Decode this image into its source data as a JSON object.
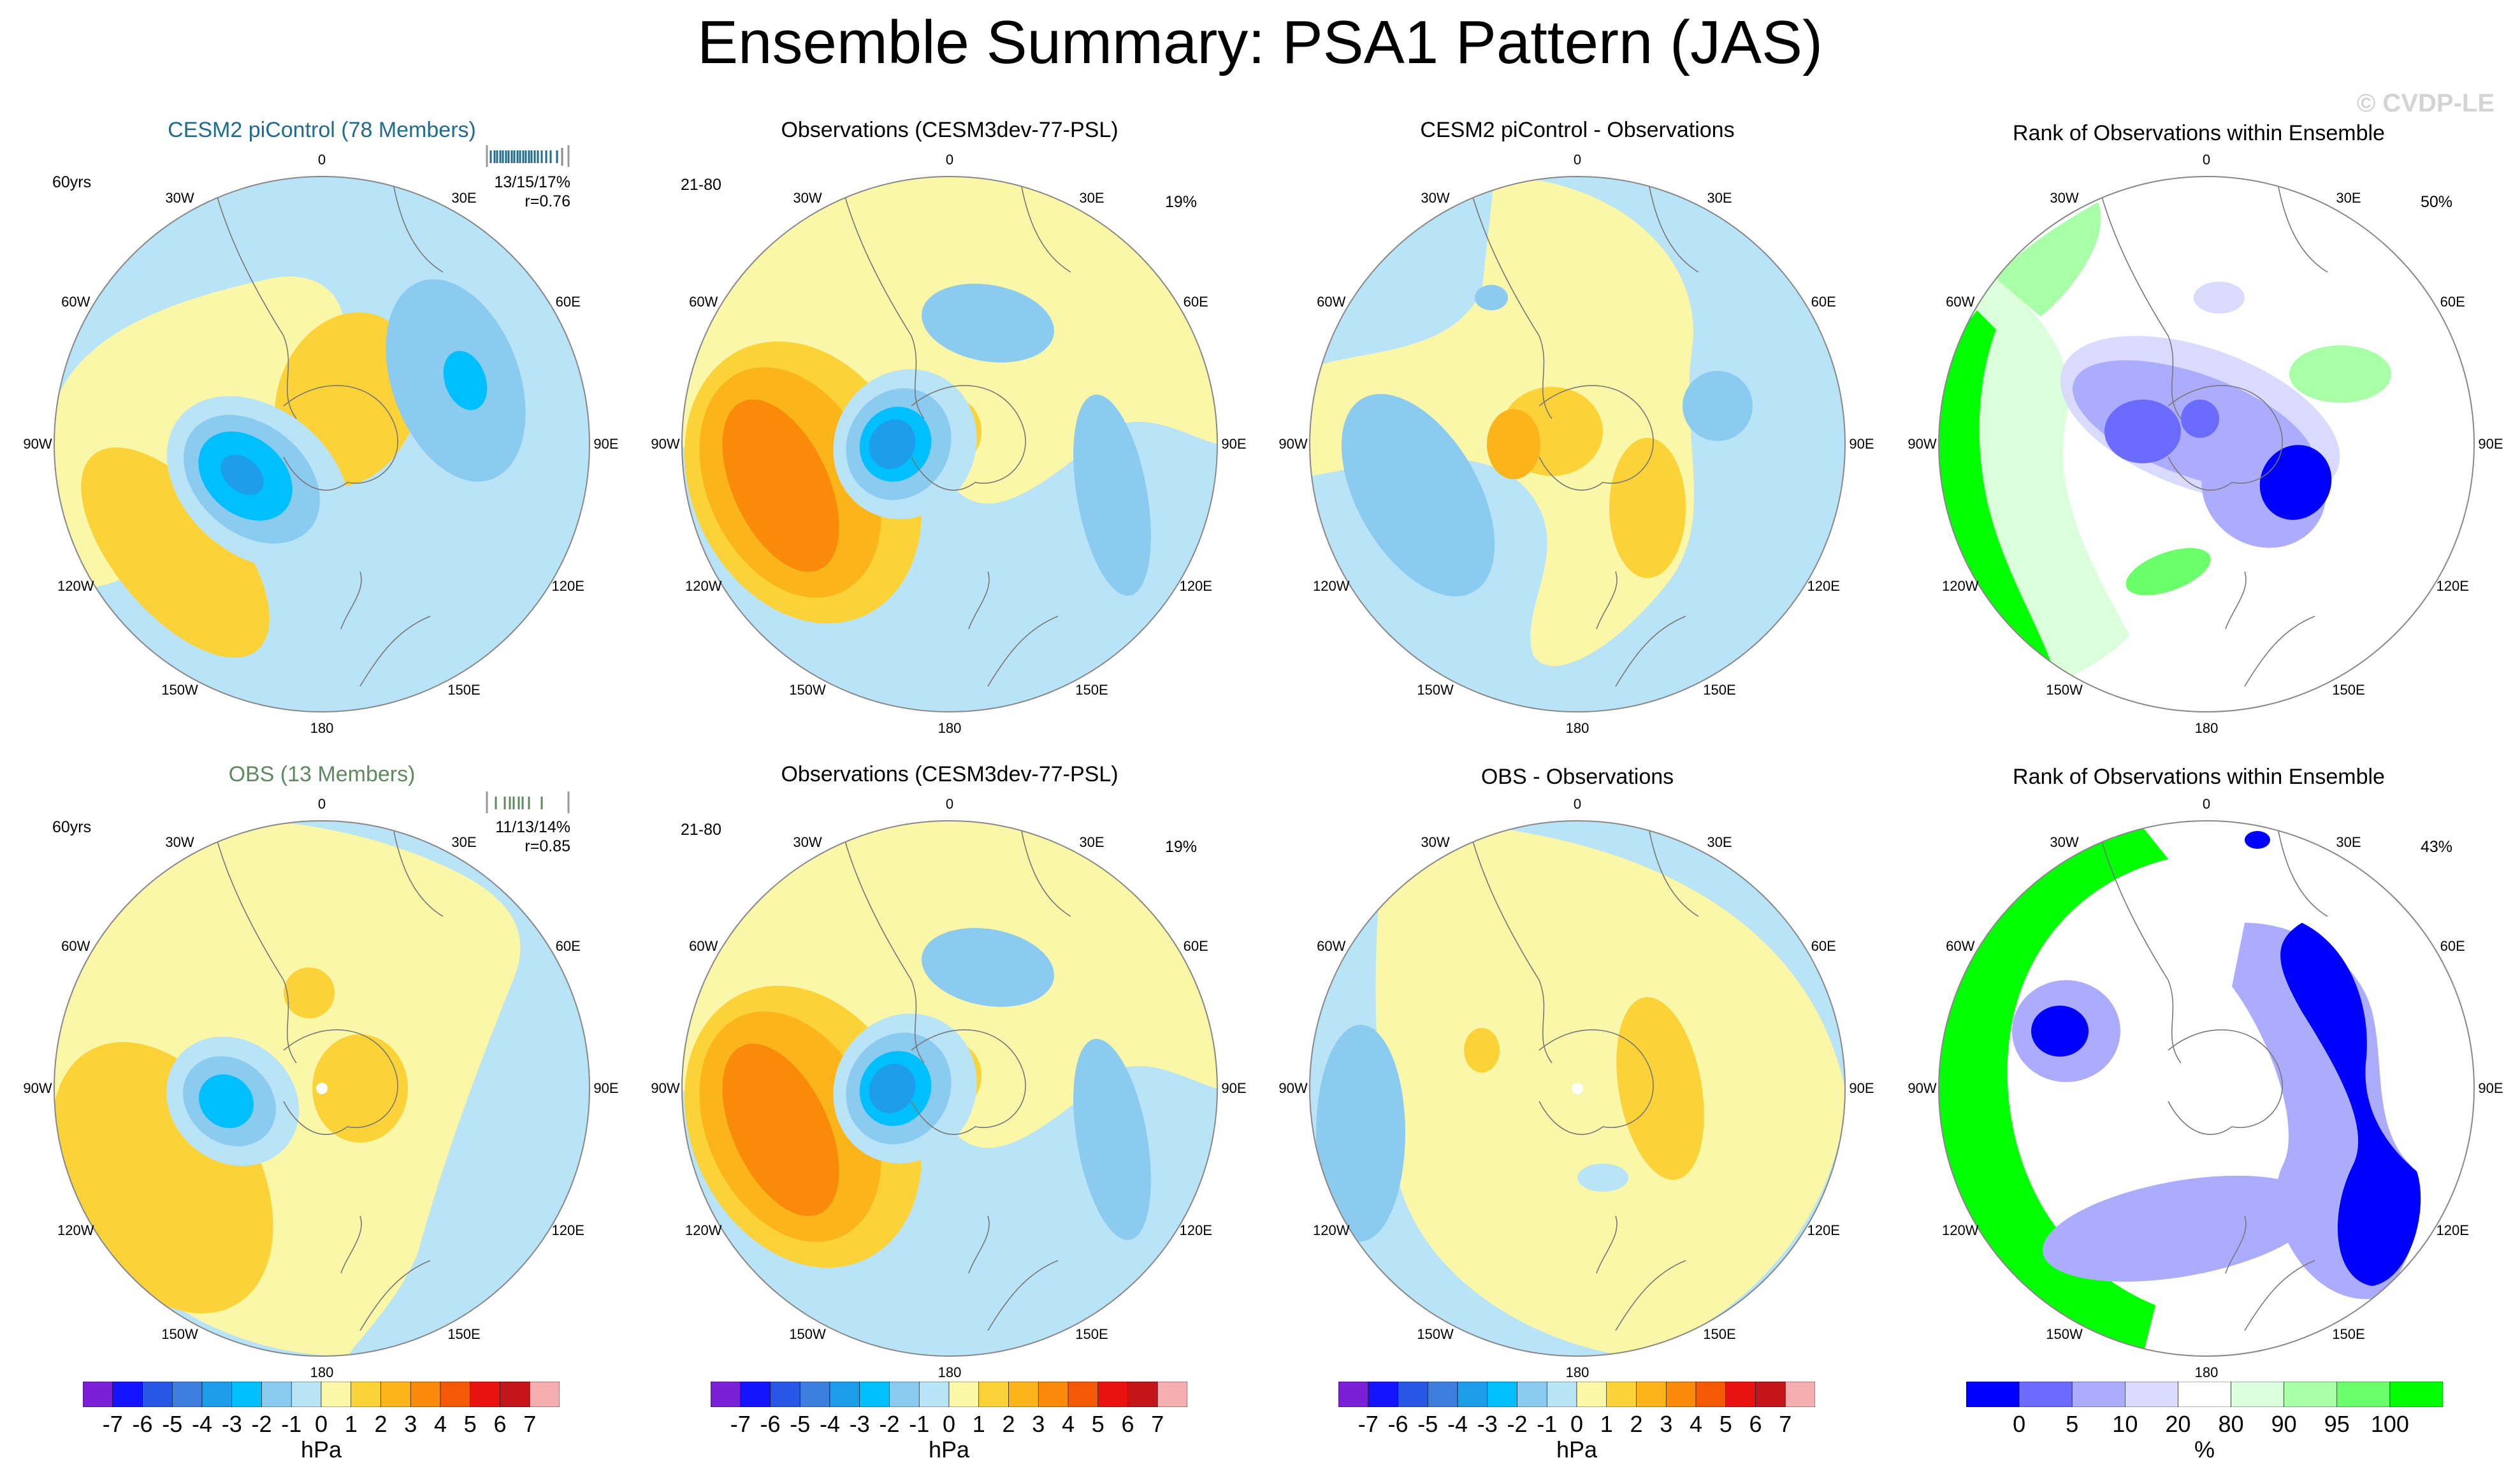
{
  "title": "Ensemble Summary: PSA1 Pattern (JAS)",
  "watermark": "© CVDP-LE",
  "colors": {
    "pal_hpa": [
      "#7a1fd6",
      "#1414ff",
      "#2857e6",
      "#3c7ddd",
      "#1e9dea",
      "#00bfff",
      "#8ccbf0",
      "#b9e3f6",
      "#fbf7a8",
      "#fbd338",
      "#fbb41a",
      "#fa8a0a",
      "#f45a05",
      "#e8130f",
      "#c3151a",
      "#f7aeb0"
    ],
    "pal_rank": [
      "#0000ff",
      "#6b6bff",
      "#acacff",
      "#dadaff",
      "#ffffff",
      "#dbffdb",
      "#a8ffa8",
      "#6cff6c",
      "#00ff00"
    ],
    "model_title": "#1f6c8c",
    "obs_title": "#5f8a5f"
  },
  "lon_labels": [
    "0",
    "30E",
    "60E",
    "90E",
    "120E",
    "150E",
    "180",
    "150W",
    "120W",
    "90W",
    "60W",
    "30W"
  ],
  "panels": {
    "r1c1": {
      "title": "CESM2 piControl (78 Members)",
      "left": "60yrs",
      "right1": "13/15/17%",
      "right2": "r=0.76"
    },
    "r1c2": {
      "title": "Observations (CESM3dev-77-PSL)",
      "left": "21-80",
      "right1": "19%"
    },
    "r1c3": {
      "title": "CESM2 piControl - Observations"
    },
    "r1c4": {
      "title": "Rank of Observations within Ensemble",
      "right1": "50%"
    },
    "r2c1": {
      "title": "OBS (13 Members)",
      "left": "60yrs",
      "right1": "11/13/14%",
      "right2": "r=0.85"
    },
    "r2c2": {
      "title": "Observations (CESM3dev-77-PSL)",
      "left": "21-80",
      "right1": "19%"
    },
    "r2c3": {
      "title": "OBS - Observations"
    },
    "r2c4": {
      "title": "Rank of Observations within Ensemble",
      "right1": "43%"
    }
  },
  "chart_data": [
    {
      "type": "heatmap",
      "panel": "r1c1",
      "title": "CESM2 piControl (78 Members)",
      "projection": "south polar stereographic",
      "variable": "PSL anomaly",
      "units": "hPa",
      "annotations": [
        "60yrs",
        "13/15/17%",
        "r=0.76"
      ],
      "features": [
        {
          "region": "90W-120W",
          "sign": "negative",
          "min": -4
        },
        {
          "region": "150W-120W",
          "sign": "positive",
          "max": 2
        },
        {
          "region": "60E-90E",
          "sign": "negative",
          "min": -2
        },
        {
          "region": "Antarctic Peninsula",
          "sign": "positive",
          "max": 2
        }
      ]
    },
    {
      "type": "heatmap",
      "panel": "r1c2",
      "title": "Observations (CESM3dev-77-PSL)",
      "units": "hPa",
      "annotations": [
        "21-80",
        "19%"
      ],
      "features": [
        {
          "region": "90W-120W",
          "sign": "negative",
          "min": -4
        },
        {
          "region": "120W-150W",
          "sign": "positive",
          "max": 4
        },
        {
          "region": "60E",
          "sign": "negative",
          "min": -2
        },
        {
          "region": "90E-150E",
          "sign": "negative",
          "min": -2
        }
      ]
    },
    {
      "type": "heatmap",
      "panel": "r1c3",
      "title": "CESM2 piControl - Observations",
      "units": "hPa",
      "features": [
        {
          "region": "90W-150W",
          "sign": "negative",
          "min": -2
        },
        {
          "region": "90W",
          "sign": "positive",
          "max": 3
        },
        {
          "region": "90E-120E",
          "sign": "positive",
          "max": 2
        },
        {
          "region": "60E",
          "sign": "negative",
          "min": -2
        }
      ]
    },
    {
      "type": "heatmap",
      "panel": "r1c4",
      "title": "Rank of Observations within Ensemble",
      "units": "%",
      "annotations": [
        "50%"
      ],
      "features": [
        {
          "region": "60W-150W rim",
          "rank": 100
        },
        {
          "region": "90W",
          "rank": 0
        },
        {
          "region": "90E-120E",
          "rank": 0
        },
        {
          "region": "30W-60W",
          "rank": 90
        }
      ]
    },
    {
      "type": "heatmap",
      "panel": "r2c1",
      "title": "OBS (13 Members)",
      "units": "hPa",
      "annotations": [
        "60yrs",
        "11/13/14%",
        "r=0.85"
      ],
      "features": [
        {
          "region": "90W-120W",
          "sign": "negative",
          "min": -4
        },
        {
          "region": "120W-150W",
          "sign": "positive",
          "max": 2
        },
        {
          "region": "120E-150E",
          "sign": "negative",
          "min": -1
        }
      ]
    },
    {
      "type": "heatmap",
      "panel": "r2c2",
      "title": "Observations (CESM3dev-77-PSL)",
      "units": "hPa",
      "annotations": [
        "21-80",
        "19%"
      ],
      "features": [
        {
          "region": "90W-120W",
          "sign": "negative",
          "min": -4
        },
        {
          "region": "120W-150W",
          "sign": "positive",
          "max": 4
        },
        {
          "region": "60E",
          "sign": "negative",
          "min": -2
        },
        {
          "region": "90E-150E",
          "sign": "negative",
          "min": -2
        }
      ]
    },
    {
      "type": "heatmap",
      "panel": "r2c3",
      "title": "OBS - Observations",
      "units": "hPa",
      "features": [
        {
          "region": "120W",
          "sign": "negative",
          "min": -2
        },
        {
          "region": "90E-120E",
          "sign": "positive",
          "max": 2
        }
      ]
    },
    {
      "type": "heatmap",
      "panel": "r2c4",
      "title": "Rank of Observations within Ensemble",
      "units": "%",
      "annotations": [
        "43%"
      ],
      "features": [
        {
          "region": "30W-150W rim",
          "rank": 100
        },
        {
          "region": "90E-150E",
          "rank": 0
        },
        {
          "region": "60W-90W",
          "rank": 0
        },
        {
          "region": "interior",
          "rank": 50
        }
      ]
    }
  ],
  "colorbars": {
    "hpa": {
      "labels": [
        "-7",
        "-6",
        "-5",
        "-4",
        "-3",
        "-2",
        "-1",
        "0",
        "1",
        "2",
        "3",
        "4",
        "5",
        "6",
        "7"
      ],
      "unit": "hPa"
    },
    "rank": {
      "labels": [
        "0",
        "5",
        "10",
        "20",
        "80",
        "90",
        "95",
        "100"
      ],
      "unit": "%"
    }
  }
}
